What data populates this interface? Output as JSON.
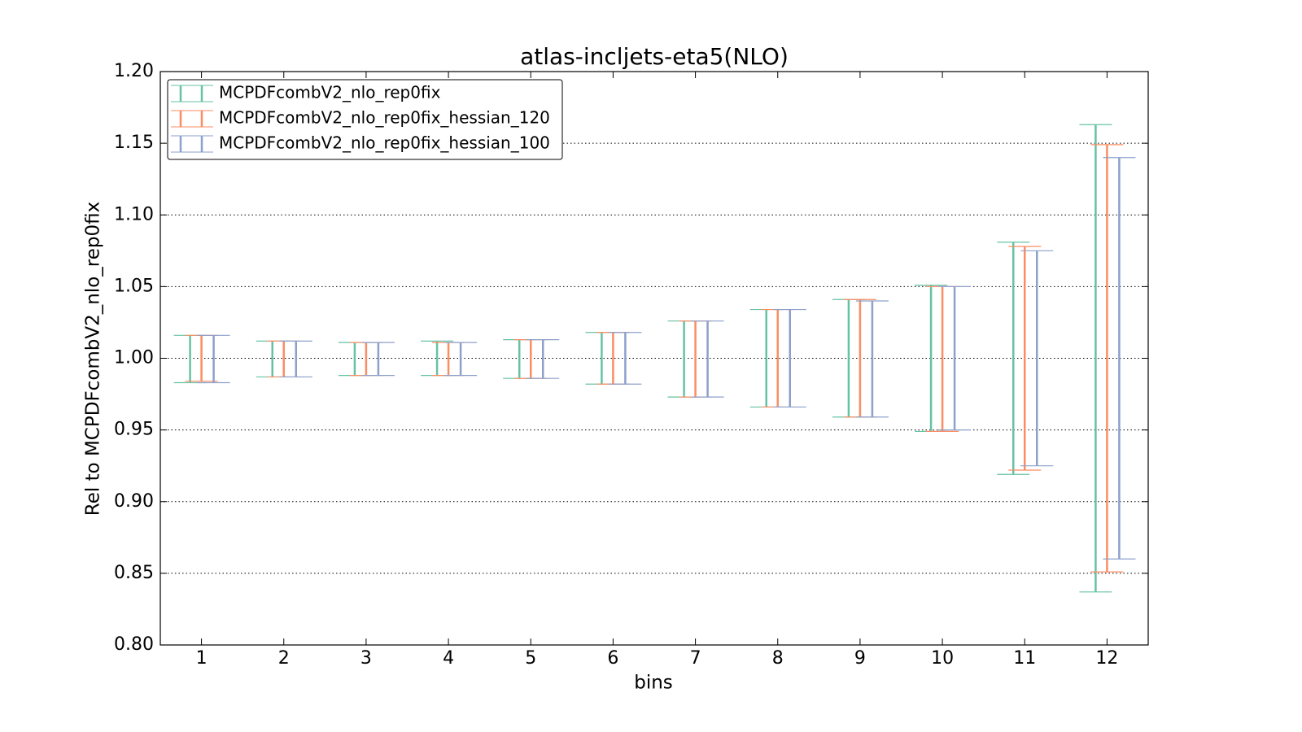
{
  "chart_data": {
    "type": "errorbar",
    "title": "atlas-incljets-eta5(NLO)",
    "x_label": "bins",
    "y_label": "Rel to MCPDFcombV2_nlo_rep0fix",
    "categories": [
      "1",
      "2",
      "3",
      "4",
      "5",
      "6",
      "7",
      "8",
      "9",
      "10",
      "11",
      "12"
    ],
    "ylim": [
      0.8,
      1.2
    ],
    "yticks": [
      {
        "value": 0.8,
        "label": "0.80"
      },
      0.85,
      {
        "value": 0.9,
        "label": "0.90"
      },
      0.95,
      {
        "value": 1.0,
        "label": "1.00"
      },
      1.05,
      {
        "value": 1.1,
        "label": "1.10"
      },
      1.15,
      {
        "value": 1.2,
        "label": "1.20"
      }
    ],
    "grid": true,
    "legend": "upper left",
    "series": [
      {
        "name": "MCPDFcombV2_nlo_rep0fix",
        "color": "#66c2a5",
        "lows": [
          0.983,
          0.987,
          0.988,
          0.988,
          0.986,
          0.982,
          0.973,
          0.966,
          0.959,
          0.949,
          0.919,
          0.837
        ],
        "highs": [
          1.016,
          1.012,
          1.011,
          1.012,
          1.013,
          1.018,
          1.026,
          1.034,
          1.041,
          1.051,
          1.081,
          1.163
        ]
      },
      {
        "name": "MCPDFcombV2_nlo_rep0fix_hessian_120",
        "color": "#fc8d62",
        "lows": [
          0.984,
          0.987,
          0.988,
          0.988,
          0.986,
          0.982,
          0.973,
          0.966,
          0.959,
          0.949,
          0.922,
          0.851
        ],
        "highs": [
          1.016,
          1.012,
          1.011,
          1.011,
          1.013,
          1.018,
          1.026,
          1.034,
          1.041,
          1.05,
          1.078,
          1.149
        ]
      },
      {
        "name": "MCPDFcombV2_nlo_rep0fix_hessian_100",
        "color": "#8da0cb",
        "lows": [
          0.983,
          0.987,
          0.988,
          0.988,
          0.986,
          0.982,
          0.973,
          0.966,
          0.959,
          0.95,
          0.925,
          0.86
        ],
        "highs": [
          1.016,
          1.012,
          1.011,
          1.011,
          1.013,
          1.018,
          1.026,
          1.034,
          1.04,
          1.05,
          1.075,
          1.14
        ]
      }
    ]
  }
}
